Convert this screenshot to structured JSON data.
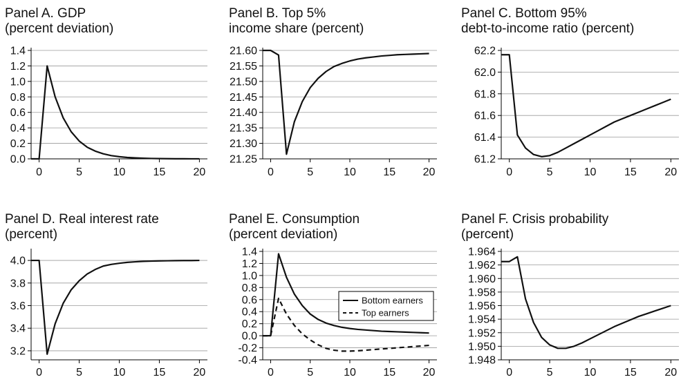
{
  "chart_data": [
    {
      "type": "line",
      "panel": "A",
      "title_lines": [
        "Panel A. GDP",
        "(percent deviation)"
      ],
      "xlim": [
        -1,
        21
      ],
      "ylim": [
        0,
        1.4
      ],
      "xticks": [
        0,
        5,
        10,
        15,
        20
      ],
      "yticks": [
        0.0,
        0.2,
        0.4,
        0.6,
        0.8,
        1.0,
        1.2,
        1.4
      ],
      "ytick_labels": [
        "0.0",
        "0.2",
        "0.4",
        "0.6",
        "0.8",
        "1.0",
        "1.2",
        "1.4"
      ],
      "grid": "horizontal",
      "series": [
        {
          "style": "solid",
          "x": [
            -1,
            0,
            1,
            2,
            3,
            4,
            5,
            6,
            7,
            8,
            9,
            10,
            11,
            12,
            13,
            14,
            15,
            16,
            17,
            18,
            19,
            20
          ],
          "y": [
            0,
            0,
            1.2,
            0.8,
            0.53,
            0.35,
            0.23,
            0.15,
            0.1,
            0.065,
            0.042,
            0.028,
            0.018,
            0.012,
            0.008,
            0.005,
            0.003,
            0.002,
            0.0013,
            0.001,
            0.0006,
            0.0004
          ]
        }
      ]
    },
    {
      "type": "line",
      "panel": "B",
      "title_lines": [
        "Panel B. Top 5%",
        "income share (percent)"
      ],
      "xlim": [
        -1,
        21
      ],
      "ylim": [
        21.25,
        21.6
      ],
      "xticks": [
        0,
        5,
        10,
        15,
        20
      ],
      "yticks": [
        21.25,
        21.3,
        21.35,
        21.4,
        21.45,
        21.5,
        21.55,
        21.6
      ],
      "ytick_labels": [
        "21.25",
        "21.30",
        "21.35",
        "21.40",
        "21.45",
        "21.50",
        "21.55",
        "21.60"
      ],
      "grid": "horizontal",
      "series": [
        {
          "style": "solid",
          "x": [
            -1,
            0,
            1,
            2,
            3,
            4,
            5,
            6,
            7,
            8,
            9,
            10,
            11,
            12,
            13,
            14,
            15,
            16,
            17,
            18,
            19,
            20
          ],
          "y": [
            21.6,
            21.6,
            21.585,
            21.265,
            21.37,
            21.435,
            21.48,
            21.51,
            21.532,
            21.548,
            21.558,
            21.566,
            21.572,
            21.576,
            21.579,
            21.582,
            21.584,
            21.586,
            21.587,
            21.588,
            21.589,
            21.59
          ]
        }
      ]
    },
    {
      "type": "line",
      "panel": "C",
      "title_lines": [
        "Panel C. Bottom 95%",
        "debt-to-income ratio (percent)"
      ],
      "xlim": [
        -1,
        21
      ],
      "ylim": [
        61.2,
        62.2
      ],
      "xticks": [
        0,
        5,
        10,
        15,
        20
      ],
      "yticks": [
        61.2,
        61.4,
        61.6,
        61.8,
        62.0,
        62.2
      ],
      "ytick_labels": [
        "61.2",
        "61.4",
        "61.6",
        "61.8",
        "62.0",
        "62.2"
      ],
      "grid": "horizontal",
      "series": [
        {
          "style": "solid",
          "x": [
            -1,
            0,
            1,
            2,
            3,
            4,
            5,
            6,
            7,
            8,
            9,
            10,
            11,
            12,
            13,
            14,
            15,
            16,
            17,
            18,
            19,
            20
          ],
          "y": [
            62.16,
            62.16,
            61.42,
            61.3,
            61.24,
            61.22,
            61.23,
            61.26,
            61.3,
            61.34,
            61.38,
            61.42,
            61.46,
            61.5,
            61.54,
            61.57,
            61.6,
            61.63,
            61.66,
            61.69,
            61.72,
            61.75
          ]
        }
      ]
    },
    {
      "type": "line",
      "panel": "D",
      "title_lines": [
        "Panel D. Real interest rate",
        "(percent)"
      ],
      "xlim": [
        -1,
        21
      ],
      "ylim": [
        3.12,
        4.08
      ],
      "xticks": [
        0,
        5,
        10,
        15,
        20
      ],
      "yticks": [
        3.2,
        3.4,
        3.6,
        3.8,
        4.0
      ],
      "ytick_labels": [
        "3.2",
        "3.4",
        "3.6",
        "3.8",
        "4.0"
      ],
      "grid": "horizontal",
      "series": [
        {
          "style": "solid",
          "x": [
            -1,
            0,
            1,
            2,
            3,
            4,
            5,
            6,
            7,
            8,
            9,
            10,
            11,
            12,
            13,
            14,
            15,
            16,
            17,
            18,
            19,
            20
          ],
          "y": [
            4.0,
            4.0,
            3.17,
            3.44,
            3.62,
            3.74,
            3.82,
            3.88,
            3.92,
            3.95,
            3.965,
            3.975,
            3.983,
            3.988,
            3.992,
            3.994,
            3.996,
            3.997,
            3.998,
            3.999,
            3.999,
            4.0
          ]
        }
      ]
    },
    {
      "type": "line",
      "panel": "E",
      "title_lines": [
        "Panel E. Consumption",
        "(percent deviation)"
      ],
      "xlim": [
        -1,
        21
      ],
      "ylim": [
        -0.4,
        1.4
      ],
      "xticks": [
        0,
        5,
        10,
        15,
        20
      ],
      "yticks": [
        -0.4,
        -0.2,
        0.0,
        0.2,
        0.4,
        0.6,
        0.8,
        1.0,
        1.2,
        1.4
      ],
      "ytick_labels": [
        "-0.4",
        "-0.2",
        "0.0",
        "0.2",
        "0.4",
        "0.6",
        "0.8",
        "1.0",
        "1.2",
        "1.4"
      ],
      "grid": "horizontal",
      "legend": "upper-right-middle",
      "series": [
        {
          "name": "Bottom earners",
          "style": "solid",
          "x": [
            -1,
            0,
            1,
            2,
            3,
            4,
            5,
            6,
            7,
            8,
            9,
            10,
            11,
            12,
            13,
            14,
            15,
            16,
            17,
            18,
            19,
            20
          ],
          "y": [
            0,
            0,
            1.36,
            0.97,
            0.69,
            0.5,
            0.36,
            0.27,
            0.21,
            0.17,
            0.14,
            0.12,
            0.105,
            0.095,
            0.085,
            0.075,
            0.07,
            0.065,
            0.06,
            0.055,
            0.05,
            0.045
          ]
        },
        {
          "name": "Top earners",
          "style": "dashed",
          "x": [
            -1,
            0,
            1,
            2,
            3,
            4,
            5,
            6,
            7,
            8,
            9,
            10,
            11,
            12,
            13,
            14,
            15,
            16,
            17,
            18,
            19,
            20
          ],
          "y": [
            0,
            0,
            0.62,
            0.36,
            0.17,
            0.03,
            -0.07,
            -0.15,
            -0.21,
            -0.24,
            -0.255,
            -0.255,
            -0.25,
            -0.24,
            -0.23,
            -0.22,
            -0.21,
            -0.2,
            -0.19,
            -0.18,
            -0.17,
            -0.16
          ]
        }
      ]
    },
    {
      "type": "line",
      "panel": "F",
      "title_lines": [
        "Panel F. Crisis probability",
        "(percent)"
      ],
      "xlim": [
        -1,
        21
      ],
      "ylim": [
        1.948,
        1.964
      ],
      "xticks": [
        0,
        5,
        10,
        15,
        20
      ],
      "yticks": [
        1.948,
        1.95,
        1.952,
        1.954,
        1.956,
        1.958,
        1.96,
        1.962,
        1.964
      ],
      "ytick_labels": [
        "1.948",
        "1.950",
        "1.952",
        "1.954",
        "1.956",
        "1.958",
        "1.960",
        "1.962",
        "1.964"
      ],
      "grid": "horizontal",
      "series": [
        {
          "style": "solid",
          "x": [
            -1,
            0,
            1,
            2,
            3,
            4,
            5,
            6,
            7,
            8,
            9,
            10,
            11,
            12,
            13,
            14,
            15,
            16,
            17,
            18,
            19,
            20
          ],
          "y": [
            1.9625,
            1.9625,
            1.9632,
            1.957,
            1.9535,
            1.9513,
            1.9502,
            1.9497,
            1.9497,
            1.95,
            1.9505,
            1.9511,
            1.9517,
            1.9523,
            1.9529,
            1.9534,
            1.9539,
            1.9544,
            1.9548,
            1.9552,
            1.9556,
            1.956
          ]
        }
      ]
    }
  ]
}
